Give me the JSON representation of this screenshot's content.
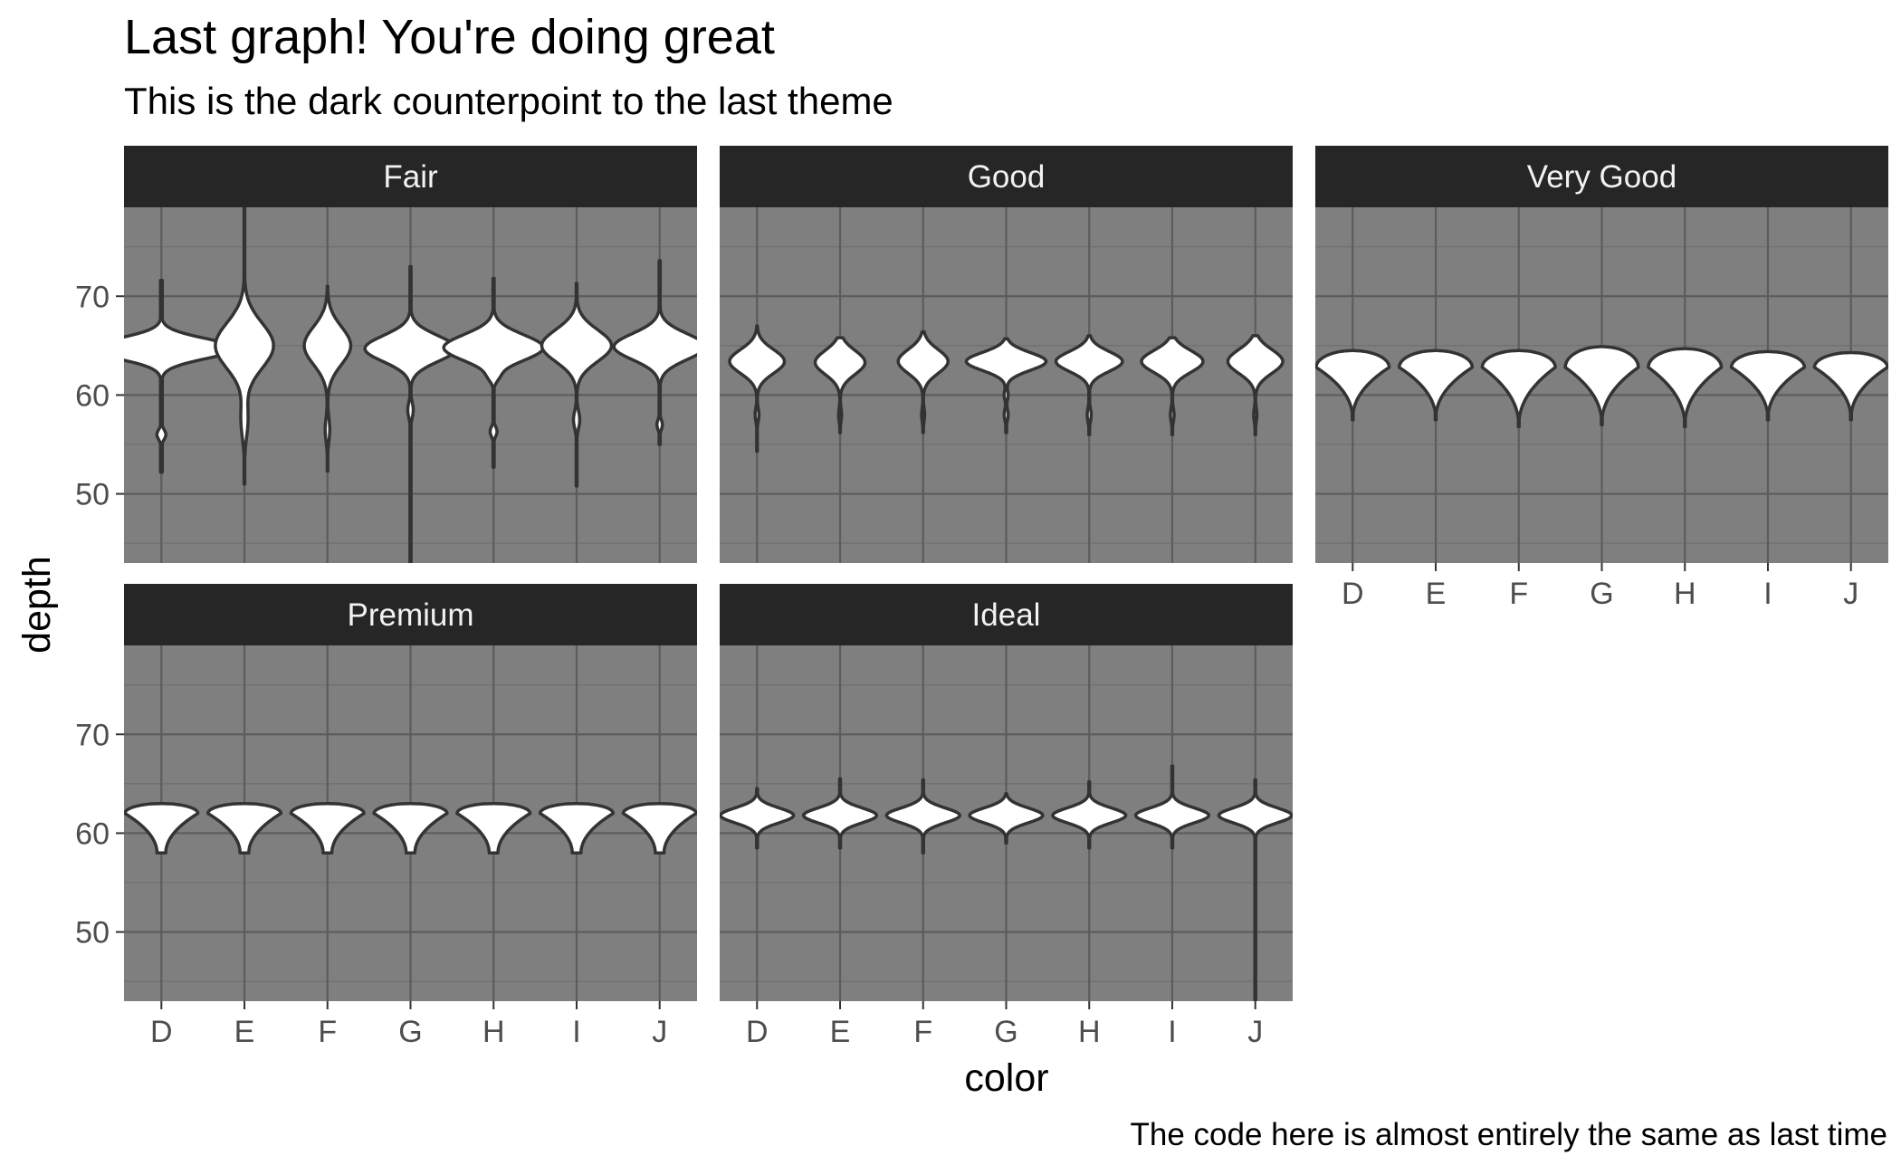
{
  "chart_data": {
    "type": "violin",
    "title": "Last graph! You're doing great",
    "subtitle": "This is the dark counterpoint to the last theme",
    "caption": "The code here is almost entirely the same as last time",
    "xlabel": "color",
    "ylabel": "depth",
    "categories": [
      "D",
      "E",
      "F",
      "G",
      "H",
      "I",
      "J"
    ],
    "ylim": [
      43,
      79
    ],
    "yticks": [
      50,
      60,
      70
    ],
    "grid": true,
    "panel_background": "#7f7f7f",
    "strip_background": "#262626",
    "violin_fill": "#ffffff",
    "violin_outline": "#333333",
    "facets": [
      {
        "name": "Fair",
        "violins": [
          {
            "color": "D",
            "min": 52.2,
            "max": 71.6,
            "peak": 64.7,
            "halfwidth": 0.9,
            "sd": 1.0,
            "taper": "spiky",
            "secondary": [
              [
                56,
                0.06,
                0.5
              ]
            ]
          },
          {
            "color": "E",
            "min": 51.0,
            "max": 79.0,
            "peak": 65.0,
            "halfwidth": 0.35,
            "sd": 2.3,
            "taper": "spiky",
            "secondary": [
              [
                57.5,
                0.12,
                1.8
              ]
            ]
          },
          {
            "color": "F",
            "min": 52.3,
            "max": 71.0,
            "peak": 65.0,
            "halfwidth": 0.28,
            "sd": 1.9,
            "taper": "spiky",
            "secondary": [
              [
                56.5,
                0.1,
                1.2
              ]
            ]
          },
          {
            "color": "G",
            "min": 43.0,
            "max": 73.0,
            "peak": 64.7,
            "halfwidth": 0.55,
            "sd": 1.3,
            "taper": "spiky",
            "secondary": [
              [
                58.5,
                0.06,
                0.8
              ]
            ]
          },
          {
            "color": "H",
            "min": 52.7,
            "max": 71.8,
            "peak": 64.8,
            "halfwidth": 0.6,
            "sd": 1.3,
            "taper": "spiky",
            "secondary": [
              [
                56.3,
                0.07,
                0.5
              ],
              [
                61.8,
                0.06,
                0.5
              ]
            ]
          },
          {
            "color": "I",
            "min": 50.8,
            "max": 71.3,
            "peak": 65.0,
            "halfwidth": 0.42,
            "sd": 1.6,
            "taper": "spiky",
            "secondary": [
              [
                57.5,
                0.09,
                0.9
              ]
            ]
          },
          {
            "color": "J",
            "min": 55.0,
            "max": 73.6,
            "peak": 64.9,
            "halfwidth": 0.55,
            "sd": 1.3,
            "taper": "spiky",
            "secondary": [
              [
                57.0,
                0.06,
                0.5
              ]
            ]
          }
        ]
      },
      {
        "name": "Good",
        "violins": [
          {
            "color": "D",
            "min": 54.3,
            "max": 67.0,
            "peak": 63.4,
            "halfwidth": 0.33,
            "sd": 1.2,
            "taper": "spiky",
            "secondary": [
              [
                58.0,
                0.07,
                0.7
              ]
            ]
          },
          {
            "color": "E",
            "min": 56.2,
            "max": 65.8,
            "peak": 63.3,
            "halfwidth": 0.3,
            "sd": 1.2,
            "taper": "spiky",
            "secondary": [
              [
                58.0,
                0.06,
                0.7
              ]
            ]
          },
          {
            "color": "F",
            "min": 56.2,
            "max": 66.4,
            "peak": 63.4,
            "halfwidth": 0.3,
            "sd": 1.2,
            "taper": "spiky",
            "secondary": [
              [
                58.0,
                0.06,
                0.7
              ]
            ]
          },
          {
            "color": "G",
            "min": 56.2,
            "max": 65.7,
            "peak": 63.4,
            "halfwidth": 0.48,
            "sd": 0.9,
            "taper": "spiky",
            "secondary": [
              [
                58.0,
                0.05,
                0.6
              ],
              [
                60.0,
                0.05,
                0.5
              ]
            ]
          },
          {
            "color": "H",
            "min": 56.0,
            "max": 66.0,
            "peak": 63.4,
            "halfwidth": 0.4,
            "sd": 1.0,
            "taper": "spiky",
            "secondary": [
              [
                58.0,
                0.06,
                0.7
              ]
            ]
          },
          {
            "color": "I",
            "min": 56.0,
            "max": 65.8,
            "peak": 63.4,
            "halfwidth": 0.37,
            "sd": 1.1,
            "taper": "spiky",
            "secondary": [
              [
                58.0,
                0.06,
                0.7
              ]
            ]
          },
          {
            "color": "J",
            "min": 56.0,
            "max": 66.0,
            "peak": 63.4,
            "halfwidth": 0.33,
            "sd": 1.2,
            "taper": "spiky",
            "secondary": [
              [
                58.0,
                0.06,
                0.7
              ]
            ]
          }
        ]
      },
      {
        "name": "Very Good",
        "violins": [
          {
            "color": "D",
            "min": 57.5,
            "max": 64.5,
            "peak": 62.8,
            "halfwidth": 0.44,
            "taper": "wedge"
          },
          {
            "color": "E",
            "min": 57.5,
            "max": 64.5,
            "peak": 62.8,
            "halfwidth": 0.44,
            "taper": "wedge"
          },
          {
            "color": "F",
            "min": 56.8,
            "max": 64.5,
            "peak": 62.8,
            "halfwidth": 0.44,
            "taper": "wedge"
          },
          {
            "color": "G",
            "min": 57.0,
            "max": 64.9,
            "peak": 62.8,
            "halfwidth": 0.44,
            "taper": "wedge"
          },
          {
            "color": "H",
            "min": 56.8,
            "max": 64.7,
            "peak": 62.8,
            "halfwidth": 0.44,
            "taper": "wedge"
          },
          {
            "color": "I",
            "min": 57.5,
            "max": 64.4,
            "peak": 62.8,
            "halfwidth": 0.44,
            "taper": "wedge"
          },
          {
            "color": "J",
            "min": 57.5,
            "max": 64.3,
            "peak": 62.8,
            "halfwidth": 0.44,
            "taper": "wedge"
          }
        ]
      },
      {
        "name": "Premium",
        "violins": [
          {
            "color": "D",
            "min": 58.0,
            "max": 63.0,
            "peak": 62.0,
            "halfwidth": 0.44,
            "taper": "flat"
          },
          {
            "color": "E",
            "min": 58.0,
            "max": 63.0,
            "peak": 62.0,
            "halfwidth": 0.44,
            "taper": "flat"
          },
          {
            "color": "F",
            "min": 58.0,
            "max": 63.0,
            "peak": 62.0,
            "halfwidth": 0.44,
            "taper": "flat"
          },
          {
            "color": "G",
            "min": 58.0,
            "max": 63.0,
            "peak": 62.0,
            "halfwidth": 0.44,
            "taper": "flat"
          },
          {
            "color": "H",
            "min": 58.0,
            "max": 63.0,
            "peak": 62.0,
            "halfwidth": 0.44,
            "taper": "flat"
          },
          {
            "color": "I",
            "min": 58.0,
            "max": 63.0,
            "peak": 62.0,
            "halfwidth": 0.44,
            "taper": "flat"
          },
          {
            "color": "J",
            "min": 58.0,
            "max": 63.0,
            "peak": 62.0,
            "halfwidth": 0.44,
            "taper": "flat"
          }
        ]
      },
      {
        "name": "Ideal",
        "violins": [
          {
            "color": "D",
            "min": 58.5,
            "max": 64.5,
            "peak": 61.8,
            "halfwidth": 0.44,
            "sd": 0.75,
            "taper": "spiky"
          },
          {
            "color": "E",
            "min": 58.5,
            "max": 65.5,
            "peak": 61.8,
            "halfwidth": 0.44,
            "sd": 0.75,
            "taper": "spiky"
          },
          {
            "color": "F",
            "min": 58.0,
            "max": 65.4,
            "peak": 61.8,
            "halfwidth": 0.44,
            "sd": 0.75,
            "taper": "spiky"
          },
          {
            "color": "G",
            "min": 59.0,
            "max": 64.0,
            "peak": 61.8,
            "halfwidth": 0.44,
            "sd": 0.75,
            "taper": "spiky"
          },
          {
            "color": "H",
            "min": 58.5,
            "max": 65.2,
            "peak": 61.8,
            "halfwidth": 0.44,
            "sd": 0.75,
            "taper": "spiky"
          },
          {
            "color": "I",
            "min": 58.5,
            "max": 66.8,
            "peak": 61.8,
            "halfwidth": 0.44,
            "sd": 0.75,
            "taper": "spiky"
          },
          {
            "color": "J",
            "min": 43.0,
            "max": 65.4,
            "peak": 61.8,
            "halfwidth": 0.44,
            "sd": 0.75,
            "taper": "spiky"
          }
        ]
      }
    ]
  }
}
